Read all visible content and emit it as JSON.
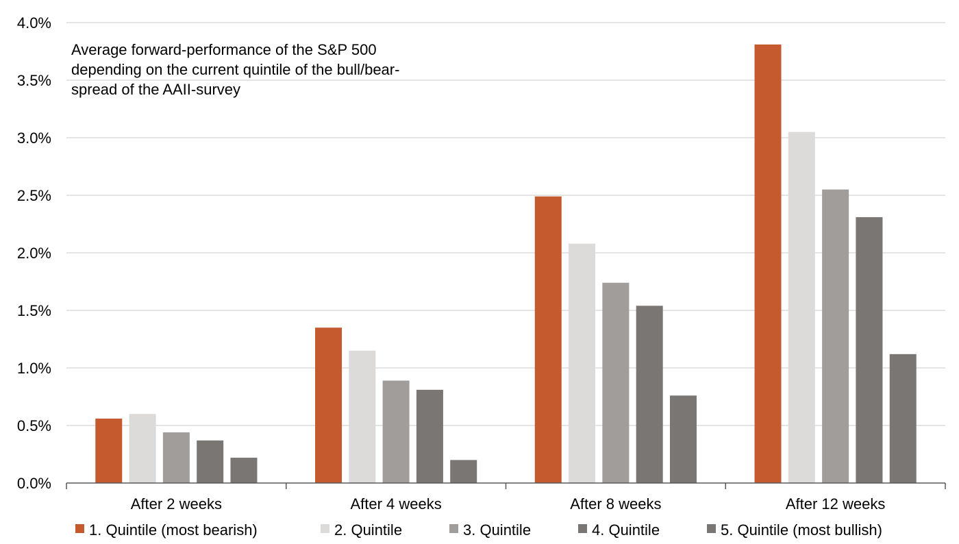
{
  "chart_data": {
    "type": "bar",
    "title_lines": [
      "Average forward-performance of the S&P 500",
      "depending on the current quintile of the bull/bear-",
      "spread of the AAII-survey"
    ],
    "categories": [
      "After 2 weeks",
      "After 4 weeks",
      "After 8 weeks",
      "After 12 weeks"
    ],
    "series": [
      {
        "name": "1. Quintile (most bearish)",
        "color": "#c65a2f",
        "values": [
          0.56,
          1.35,
          2.49,
          3.81
        ]
      },
      {
        "name": "2. Quintile",
        "color": "#dcdbda",
        "values": [
          0.6,
          1.15,
          2.08,
          3.05
        ]
      },
      {
        "name": "3. Quintile",
        "color": "#a09d9a",
        "values": [
          0.44,
          0.89,
          1.74,
          2.55
        ]
      },
      {
        "name": "4. Quintile",
        "color": "#7a7673",
        "values": [
          0.37,
          0.81,
          1.54,
          2.31
        ]
      },
      {
        "name": "5. Quintile (most bullish)",
        "color": "#7a7673",
        "values": [
          0.22,
          0.2,
          0.76,
          1.12
        ]
      }
    ],
    "ylim": [
      0,
      4
    ],
    "yticks": [
      0,
      0.5,
      1,
      1.5,
      2,
      2.5,
      3,
      3.5,
      4
    ],
    "ytick_labels": [
      "0.0%",
      "0.5%",
      "1.0%",
      "1.5%",
      "2.0%",
      "2.5%",
      "3.0%",
      "3.5%",
      "4.0%"
    ],
    "grid": true,
    "legend_position": "bottom",
    "gridline_color": "#c8c8c8",
    "axis_color": "#595959"
  }
}
